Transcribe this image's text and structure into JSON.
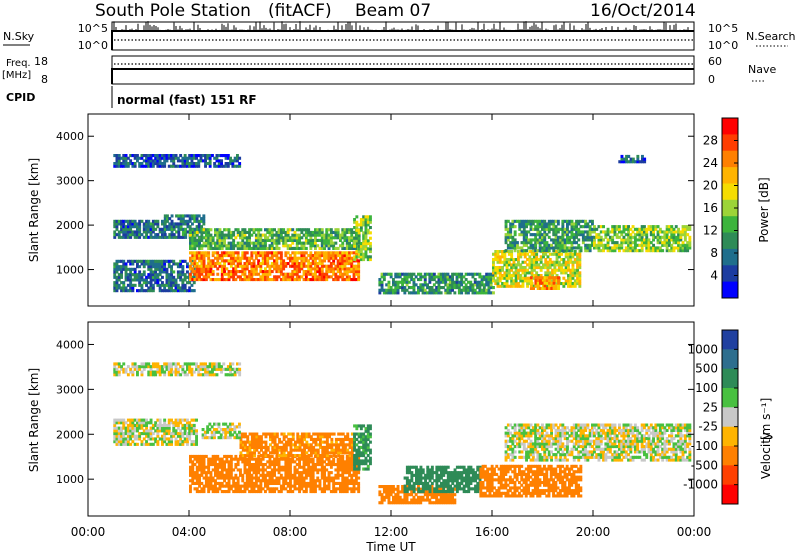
{
  "header": {
    "station": "South Pole Station",
    "mode": "(fitACF)",
    "beam": "Beam 07",
    "date": "16/Oct/2014"
  },
  "top_panels": {
    "nsky_label": "N.Sky",
    "nsky_ticks": [
      "10^5",
      "10^0"
    ],
    "nsearch_label": "N.Search",
    "nsearch_ticks": [
      "10^5",
      "10^0"
    ],
    "freq_label": "Freq.",
    "freq_unit": "[MHz]",
    "freq_ticks": [
      "18",
      "8"
    ],
    "nave_label": "Nave",
    "nave_ticks": [
      "60",
      "0"
    ],
    "cpid_label": "CPID",
    "cpid_text": "normal (fast) 151 RF"
  },
  "axes": {
    "ylabel": "Slant Range [km]",
    "yticks": [
      "4000",
      "3000",
      "2000",
      "1000"
    ],
    "xlabel": "Time UT",
    "xticks": [
      "00:00",
      "04:00",
      "08:00",
      "12:00",
      "16:00",
      "20:00",
      "00:00"
    ]
  },
  "power_scale": {
    "label": "Power [dB]",
    "ticks": [
      "28",
      "24",
      "20",
      "16",
      "12",
      "8",
      "4"
    ],
    "colors": [
      "#ff0000",
      "#ff3d00",
      "#ff8000",
      "#ffb400",
      "#f5dc00",
      "#9cd438",
      "#3cb43c",
      "#2e8b57",
      "#1f6e8c",
      "#1c3ca0",
      "#0000ff"
    ]
  },
  "velocity_scale": {
    "label": "Velocity",
    "unit": "[m s⁻¹]",
    "ticks": [
      "1000",
      "500",
      "100",
      "25",
      "-25",
      "-100",
      "-500",
      "-1000"
    ],
    "colors": [
      "#2040a0",
      "#2e6e8e",
      "#2e8b57",
      "#48c040",
      "#c8c8c8",
      "#ffb400",
      "#ff8000",
      "#ff4000",
      "#ff0000"
    ]
  },
  "chart_data": [
    {
      "type": "heatmap",
      "title": "Power",
      "xlabel": "Time UT",
      "ylabel": "Slant Range [km]",
      "xlim": [
        0,
        24
      ],
      "ylim": [
        180,
        4500
      ],
      "colorbar": {
        "label": "Power [dB]",
        "range": [
          0,
          30
        ]
      },
      "regions": [
        {
          "t": [
            1.0,
            3.0
          ],
          "r": [
            1700,
            2100
          ],
          "value": 6
        },
        {
          "t": [
            3.0,
            4.6
          ],
          "r": [
            1700,
            2200
          ],
          "value": 7
        },
        {
          "t": [
            1.0,
            4.2
          ],
          "r": [
            500,
            1200
          ],
          "value": 6
        },
        {
          "t": [
            4.0,
            10.7
          ],
          "r": [
            750,
            1400
          ],
          "value": 24
        },
        {
          "t": [
            4.0,
            10.7
          ],
          "r": [
            1450,
            1900
          ],
          "value": 12
        },
        {
          "t": [
            10.5,
            11.2
          ],
          "r": [
            1200,
            2200
          ],
          "value": 14
        },
        {
          "t": [
            11.5,
            16.0
          ],
          "r": [
            450,
            900
          ],
          "value": 9
        },
        {
          "t": [
            16.0,
            19.5
          ],
          "r": [
            600,
            1400
          ],
          "value": 17
        },
        {
          "t": [
            17.5,
            18.6
          ],
          "r": [
            550,
            850
          ],
          "value": 22
        },
        {
          "t": [
            16.5,
            20.0
          ],
          "r": [
            1400,
            2100
          ],
          "value": 10
        },
        {
          "t": [
            20.0,
            23.8
          ],
          "r": [
            1400,
            2000
          ],
          "value": 14
        },
        {
          "t": [
            1.0,
            6.0
          ],
          "r": [
            3300,
            3550
          ],
          "value": 4
        },
        {
          "t": [
            21.0,
            22.0
          ],
          "r": [
            3400,
            3550
          ],
          "value": 5
        }
      ]
    },
    {
      "type": "heatmap",
      "title": "Velocity",
      "xlabel": "Time UT",
      "ylabel": "Slant Range [km]",
      "xlim": [
        0,
        24
      ],
      "ylim": [
        180,
        4500
      ],
      "colorbar": {
        "label": "Velocity [m s-1]",
        "range": [
          -1000,
          1000
        ]
      },
      "regions": [
        {
          "t": [
            1.0,
            4.3
          ],
          "r": [
            1750,
            2300
          ],
          "value": 0
        },
        {
          "t": [
            4.0,
            10.7
          ],
          "r": [
            700,
            1500
          ],
          "value": -250
        },
        {
          "t": [
            6.0,
            10.5
          ],
          "r": [
            1500,
            2000
          ],
          "value": -150
        },
        {
          "t": [
            4.5,
            6.0
          ],
          "r": [
            1900,
            2250
          ],
          "value": 0
        },
        {
          "t": [
            10.5,
            11.2
          ],
          "r": [
            1200,
            2200
          ],
          "value": 150
        },
        {
          "t": [
            11.5,
            14.5
          ],
          "r": [
            450,
            850
          ],
          "value": -300
        },
        {
          "t": [
            12.5,
            15.5
          ],
          "r": [
            700,
            1300
          ],
          "value": 300
        },
        {
          "t": [
            15.5,
            19.5
          ],
          "r": [
            600,
            1300
          ],
          "value": -400
        },
        {
          "t": [
            16.5,
            20.0
          ],
          "r": [
            1400,
            2200
          ],
          "value": 0
        },
        {
          "t": [
            20.0,
            23.8
          ],
          "r": [
            1400,
            2200
          ],
          "value": 0
        },
        {
          "t": [
            1.0,
            6.0
          ],
          "r": [
            3300,
            3550
          ],
          "value": 0
        }
      ]
    }
  ]
}
